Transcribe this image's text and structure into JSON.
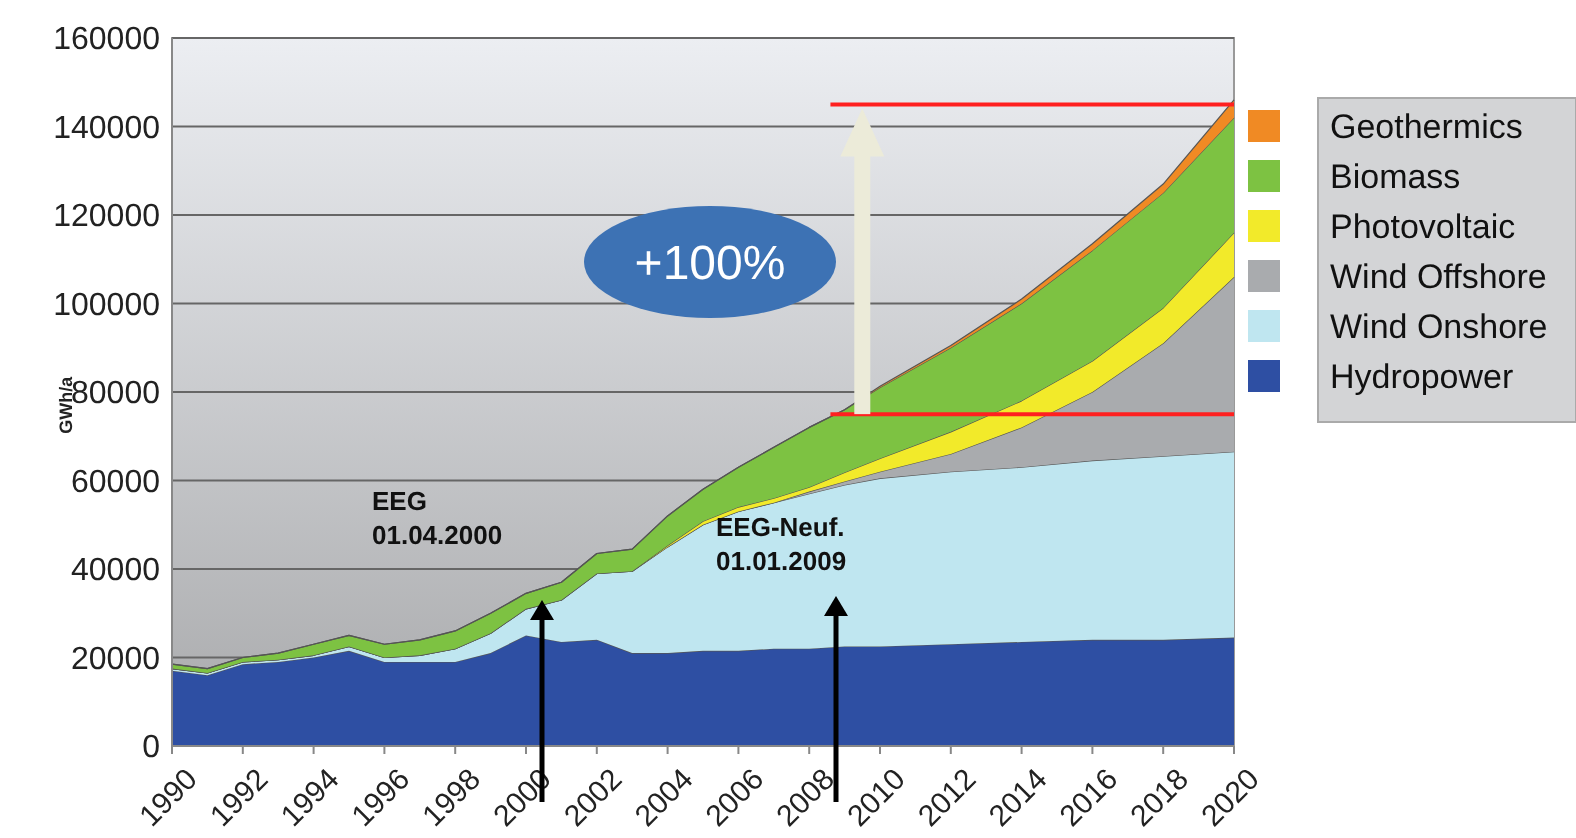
{
  "chart_data": {
    "type": "area",
    "stacked": true,
    "ylabel": "GWh/a",
    "x": [
      1990,
      1991,
      1992,
      1993,
      1994,
      1995,
      1996,
      1997,
      1998,
      1999,
      2000,
      2001,
      2002,
      2003,
      2004,
      2005,
      2006,
      2007,
      2008,
      2009,
      2010,
      2012,
      2014,
      2016,
      2018,
      2020
    ],
    "series": [
      {
        "name": "Hydropower",
        "color": "#2e4fa3",
        "values": [
          17000,
          16000,
          18500,
          19000,
          20000,
          21500,
          19000,
          19000,
          19000,
          21000,
          25000,
          23500,
          24000,
          21000,
          21000,
          21500,
          21500,
          22000,
          22000,
          22500,
          22500,
          23000,
          23500,
          24000,
          24000,
          24500
        ]
      },
      {
        "name": "Wind Onshore",
        "color": "#bfe6f0",
        "values": [
          500,
          500,
          500,
          500,
          500,
          1000,
          1000,
          1500,
          3000,
          4500,
          6000,
          9500,
          15000,
          18500,
          24000,
          28500,
          31500,
          33000,
          35000,
          36500,
          38000,
          39000,
          39500,
          40500,
          41500,
          42000
        ]
      },
      {
        "name": "Wind Offshore",
        "color": "#a9abae",
        "values": [
          0,
          0,
          0,
          0,
          0,
          0,
          0,
          0,
          0,
          0,
          0,
          0,
          0,
          0,
          0,
          0,
          0,
          0,
          500,
          800,
          1500,
          4000,
          9000,
          15500,
          25500,
          39500
        ]
      },
      {
        "name": "Photovoltaic",
        "color": "#f2ea2a",
        "values": [
          0,
          0,
          0,
          0,
          0,
          0,
          0,
          0,
          0,
          0,
          0,
          0,
          0,
          0,
          300,
          800,
          1000,
          1000,
          1000,
          2000,
          3000,
          5000,
          6000,
          7000,
          8000,
          10000
        ]
      },
      {
        "name": "Biomass",
        "color": "#7dc242",
        "values": [
          1000,
          1000,
          1000,
          1500,
          2500,
          2500,
          3000,
          3500,
          4000,
          4500,
          3500,
          4000,
          4500,
          5000,
          6700,
          7200,
          9000,
          11500,
          13500,
          14200,
          16000,
          19000,
          22000,
          25000,
          26000,
          26000
        ]
      },
      {
        "name": "Geothermics",
        "color": "#f08a24",
        "values": [
          0,
          0,
          0,
          0,
          0,
          0,
          0,
          0,
          0,
          0,
          0,
          0,
          0,
          0,
          0,
          0,
          0,
          0,
          0,
          0,
          300,
          500,
          1000,
          1500,
          2000,
          4000
        ]
      }
    ],
    "xlim": [
      1990,
      2020
    ],
    "xticks": [
      1990,
      1992,
      1994,
      1996,
      1998,
      2000,
      2002,
      2004,
      2006,
      2008,
      2010,
      2012,
      2014,
      2016,
      2018,
      2020
    ],
    "ylim": [
      0,
      160000
    ],
    "yticks": [
      0,
      20000,
      40000,
      60000,
      80000,
      100000,
      120000,
      140000,
      160000
    ],
    "grid": "y",
    "legend": "right",
    "ref_lines": [
      {
        "axis": "y",
        "value": 75000,
        "color": "#ff2020"
      },
      {
        "axis": "y",
        "value": 145000,
        "color": "#ff2020"
      }
    ],
    "annotations": [
      "+100%",
      "EEG\n01.04.2000",
      "EEG-Neuf.\n01.01.2009"
    ]
  }
}
